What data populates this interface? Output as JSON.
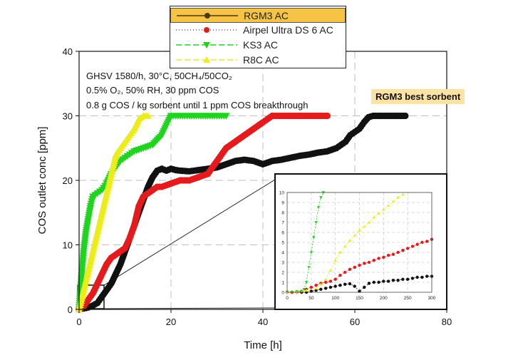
{
  "chart_data": {
    "type": "scatter",
    "title": "",
    "xlabel": "Time [h]",
    "ylabel": "COS outlet conc [ppm]",
    "xlim": [
      0,
      80
    ],
    "ylim": [
      0,
      40
    ],
    "xticks": [
      0,
      20,
      40,
      60,
      80
    ],
    "yticks": [
      0,
      10,
      20,
      30,
      40
    ],
    "grid": true,
    "legend_position": "top-center",
    "annotation_lines": [
      "GHSV 1580/h, 30°C, 50CH4/50CO2",
      "0.5% O2, 50% RH, 30 ppm COS",
      "0.8 g COS / kg sorbent until 1 ppm COS breakthrough"
    ],
    "callout": "RGM3 best sorbent",
    "series": [
      {
        "name": "RGM3 AC",
        "color": "#111111",
        "marker": "circle",
        "x": [
          0,
          2,
          3,
          4,
          5,
          6,
          7,
          8,
          9,
          10,
          11,
          12,
          13,
          14,
          15,
          16,
          17,
          18,
          19,
          20,
          21,
          22,
          24,
          26,
          28,
          30,
          32,
          34,
          36,
          38,
          40,
          42,
          44,
          46,
          48,
          50,
          52,
          54,
          56,
          57,
          58,
          59,
          60,
          61,
          62,
          63,
          64,
          65,
          66,
          68,
          70,
          71
        ],
        "y": [
          0,
          0.3,
          0.6,
          1,
          2,
          3,
          4,
          5.5,
          7,
          9,
          11,
          13,
          15,
          17,
          19,
          20.5,
          21.5,
          21.8,
          21.5,
          21.8,
          21.6,
          21.5,
          21.4,
          21.6,
          21.8,
          22,
          22.5,
          23,
          23.2,
          23,
          22.5,
          23,
          23.2,
          23.5,
          23.8,
          24,
          24.3,
          24.5,
          25,
          25.5,
          26,
          27,
          27.5,
          28,
          29,
          29.8,
          30,
          30,
          30,
          30,
          30,
          30
        ]
      },
      {
        "name": "Airpel Ultra DS 6 AC",
        "color": "#e41a1c",
        "marker": "circle",
        "x": [
          0,
          1,
          2,
          3,
          4,
          5,
          6,
          7,
          8,
          9,
          10,
          11,
          12,
          13,
          14,
          15,
          16,
          17,
          18,
          20,
          22,
          24,
          26,
          28,
          29,
          30,
          31,
          32,
          34,
          36,
          38,
          40,
          41,
          42,
          43,
          44,
          45,
          46,
          48,
          50,
          52,
          54
        ],
        "y": [
          0,
          0.5,
          1.5,
          2.5,
          4,
          5.5,
          7,
          8,
          8.5,
          9,
          9.5,
          11,
          13,
          16,
          17.5,
          18,
          18.5,
          19,
          19,
          19.5,
          20,
          20,
          20.5,
          21,
          22,
          23,
          24,
          25,
          26,
          27,
          28,
          29,
          29.5,
          30,
          30,
          30,
          30,
          30,
          30,
          30,
          30,
          30
        ]
      },
      {
        "name": "KS3 AC",
        "color": "#1fd41f",
        "marker": "triangle-down",
        "x": [
          0,
          0.5,
          1,
          1.5,
          2,
          2.5,
          3,
          4,
          5,
          6,
          7,
          8,
          9,
          10,
          11,
          12,
          14,
          16,
          18,
          19,
          20,
          21,
          22,
          24,
          26,
          28,
          30,
          32
        ],
        "y": [
          0,
          5,
          9,
          12,
          14,
          16,
          17.5,
          18,
          18.5,
          19.5,
          21,
          22,
          23,
          23.5,
          24,
          24.5,
          25,
          25.5,
          27,
          28.5,
          30,
          30,
          30,
          30,
          30,
          30,
          30,
          30
        ]
      },
      {
        "name": "R8C AC",
        "color": "#ecec1c",
        "marker": "triangle-up",
        "x": [
          0,
          1,
          2,
          3,
          4,
          5,
          6,
          7,
          8,
          9,
          10,
          11,
          12,
          13,
          14,
          14.5,
          15
        ],
        "y": [
          0,
          3,
          6,
          9,
          12,
          15,
          18,
          21,
          24,
          25,
          26,
          27,
          28,
          29.5,
          30,
          30,
          30
        ]
      }
    ],
    "inset": {
      "xlim": [
        0,
        300
      ],
      "ylim": [
        0,
        10
      ],
      "xticks": [
        0,
        50,
        100,
        150,
        200,
        250,
        300
      ],
      "yticks": [
        0,
        1,
        2,
        3,
        4,
        5,
        6,
        7,
        8,
        9,
        10
      ],
      "series": [
        {
          "name": "RGM3 AC",
          "x": [
            0,
            10,
            20,
            30,
            40,
            50,
            60,
            70,
            80,
            90,
            100,
            110,
            120,
            130,
            140,
            150,
            160,
            170,
            180,
            190,
            200,
            210,
            220,
            230,
            240,
            250,
            260,
            270,
            280,
            290,
            300
          ],
          "y": [
            0,
            0,
            0,
            0,
            0,
            0.1,
            0.2,
            0.3,
            0.4,
            0.5,
            0.6,
            0.7,
            0.8,
            0.85,
            0.6,
            0.1,
            0.5,
            0.9,
            1.0,
            1.0,
            1.1,
            1.1,
            1.2,
            1.2,
            1.3,
            1.3,
            1.4,
            1.5,
            1.5,
            1.6,
            1.6
          ]
        },
        {
          "name": "Airpel Ultra DS 6 AC",
          "x": [
            0,
            10,
            20,
            30,
            40,
            50,
            60,
            70,
            80,
            90,
            100,
            110,
            120,
            130,
            140,
            150,
            160,
            170,
            180,
            190,
            200,
            210,
            220,
            230,
            240,
            250,
            260,
            270,
            280,
            290,
            300
          ],
          "y": [
            0,
            0,
            0,
            0.1,
            0.3,
            0.5,
            0.7,
            0.9,
            1.0,
            1.1,
            1.3,
            1.7,
            2.0,
            2.3,
            2.5,
            2.7,
            2.9,
            3.0,
            3.2,
            3.4,
            3.5,
            3.7,
            3.8,
            4.0,
            4.2,
            4.4,
            4.6,
            4.8,
            5.0,
            5.1,
            5.3
          ]
        },
        {
          "name": "KS3 AC",
          "x": [
            0,
            10,
            20,
            30,
            35,
            40,
            45,
            50,
            55,
            60,
            65,
            70,
            75
          ],
          "y": [
            0,
            0,
            0.1,
            0.1,
            0.3,
            1.0,
            2.5,
            4.0,
            5.5,
            7.0,
            8.5,
            9.5,
            10
          ]
        },
        {
          "name": "R8C AC",
          "x": [
            0,
            20,
            40,
            60,
            70,
            80,
            90,
            100,
            110,
            120,
            130,
            140,
            150,
            160,
            170,
            180,
            190,
            200,
            210,
            220,
            230,
            240
          ],
          "y": [
            0,
            0,
            0.2,
            0.4,
            0.8,
            1.3,
            2.2,
            3.2,
            4.0,
            4.6,
            5.2,
            5.7,
            6.2,
            6.6,
            7.0,
            7.5,
            7.9,
            8.3,
            8.7,
            9.1,
            9.5,
            9.8
          ]
        }
      ]
    }
  }
}
